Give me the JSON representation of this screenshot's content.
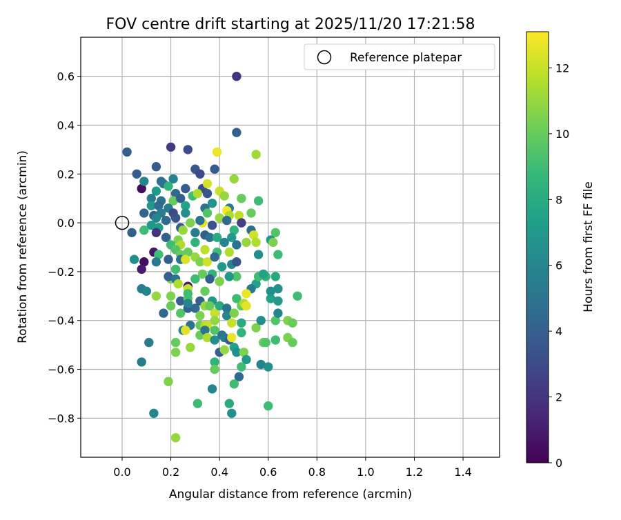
{
  "chart_data": {
    "type": "scatter",
    "title": "FOV centre drift starting at 2025/11/20 17:21:58",
    "xlabel": "Angular distance from reference (arcmin)",
    "ylabel": "Rotation from reference (arcmin)",
    "xlim": [
      -0.17,
      1.55
    ],
    "ylim": [
      -0.96,
      0.76
    ],
    "xticks": [
      0.0,
      0.2,
      0.4,
      0.6,
      0.8,
      1.0,
      1.2,
      1.4
    ],
    "xtick_labels": [
      "0.0",
      "0.2",
      "0.4",
      "0.6",
      "0.8",
      "1.0",
      "1.2",
      "1.4"
    ],
    "yticks": [
      0.6,
      0.4,
      0.2,
      0.0,
      -0.2,
      -0.4,
      -0.6,
      -0.8
    ],
    "ytick_labels": [
      "0.6",
      "0.4",
      "0.2",
      "0.0",
      "−0.2",
      "−0.4",
      "−0.6",
      "−0.8"
    ],
    "grid": true,
    "legend": {
      "placement": "top-right",
      "label": "Reference platepar",
      "marker": "open-circle"
    },
    "reference_point": {
      "x": 0.0,
      "y": 0.0
    },
    "colorbar": {
      "label": "Hours from first FF file",
      "range": [
        0,
        13.1
      ],
      "ticks": [
        0,
        2,
        4,
        6,
        8,
        10,
        12
      ],
      "tick_labels": [
        "0",
        "2",
        "4",
        "6",
        "8",
        "10",
        "12"
      ],
      "colormap": [
        "#440154",
        "#482878",
        "#3e4989",
        "#31688e",
        "#26828e",
        "#1f9e89",
        "#35b779",
        "#6ece58",
        "#b5de2b",
        "#fde725"
      ]
    },
    "points": [
      [
        0.47,
        0.6,
        2.0
      ],
      [
        0.47,
        0.37,
        4.0
      ],
      [
        0.02,
        0.29,
        4.0
      ],
      [
        0.2,
        0.31,
        2.3
      ],
      [
        0.27,
        0.3,
        3.0
      ],
      [
        0.39,
        0.29,
        12.8
      ],
      [
        0.55,
        0.28,
        11.2
      ],
      [
        0.3,
        0.22,
        3.5
      ],
      [
        0.38,
        0.22,
        3.8
      ],
      [
        0.06,
        0.2,
        3.8
      ],
      [
        0.14,
        0.23,
        3.8
      ],
      [
        0.32,
        0.2,
        3.0
      ],
      [
        0.21,
        0.18,
        5.8
      ],
      [
        0.46,
        0.18,
        11.0
      ],
      [
        0.16,
        0.17,
        4.7
      ],
      [
        0.08,
        0.14,
        0.5
      ],
      [
        0.17,
        0.16,
        5.0
      ],
      [
        0.26,
        0.14,
        3.8
      ],
      [
        0.33,
        0.14,
        3.2
      ],
      [
        0.35,
        0.16,
        12.3
      ],
      [
        0.4,
        0.13,
        12.0
      ],
      [
        0.09,
        0.17,
        6.0
      ],
      [
        0.14,
        0.13,
        7.0
      ],
      [
        0.19,
        0.15,
        8.5
      ],
      [
        0.22,
        0.12,
        4.5
      ],
      [
        0.29,
        0.11,
        9.0
      ],
      [
        0.31,
        0.12,
        11.5
      ],
      [
        0.35,
        0.12,
        3.5
      ],
      [
        0.42,
        0.11,
        11.0
      ],
      [
        0.49,
        0.1,
        10.0
      ],
      [
        0.12,
        0.1,
        5.5
      ],
      [
        0.16,
        0.09,
        5.0
      ],
      [
        0.21,
        0.09,
        10.0
      ],
      [
        0.24,
        0.1,
        4.0
      ],
      [
        0.37,
        0.08,
        6.8
      ],
      [
        0.56,
        0.09,
        9.0
      ],
      [
        0.12,
        0.07,
        7.0
      ],
      [
        0.15,
        0.07,
        4.5
      ],
      [
        0.19,
        0.06,
        5.5
      ],
      [
        0.26,
        0.07,
        7.5
      ],
      [
        0.34,
        0.06,
        5.0
      ],
      [
        0.44,
        0.06,
        5.5
      ],
      [
        0.09,
        0.04,
        4.2
      ],
      [
        0.13,
        0.03,
        3.8
      ],
      [
        0.16,
        0.04,
        5.5
      ],
      [
        0.21,
        0.04,
        3.0
      ],
      [
        0.26,
        0.04,
        6.5
      ],
      [
        0.35,
        0.04,
        9.5
      ],
      [
        0.43,
        0.05,
        12.9
      ],
      [
        0.48,
        0.03,
        11.8
      ],
      [
        0.53,
        0.04,
        10.0
      ],
      [
        0.14,
        0.02,
        6.0
      ],
      [
        0.18,
        0.01,
        4.5
      ],
      [
        0.22,
        0.02,
        3.5
      ],
      [
        0.28,
        0.0,
        10.5
      ],
      [
        0.33,
        0.0,
        12.6
      ],
      [
        0.4,
        0.02,
        11.0
      ],
      [
        0.44,
        0.03,
        11.5
      ],
      [
        0.49,
        0.0,
        2.5
      ],
      [
        0.12,
        -0.01,
        7.0
      ],
      [
        0.15,
        -0.02,
        7.2
      ],
      [
        0.24,
        -0.02,
        4.0
      ],
      [
        0.32,
        0.01,
        5.0
      ],
      [
        0.37,
        -0.01,
        3.3
      ],
      [
        0.43,
        0.01,
        4.5
      ],
      [
        0.09,
        -0.03,
        9.0
      ],
      [
        0.14,
        -0.04,
        2.0
      ],
      [
        0.25,
        -0.03,
        11.0
      ],
      [
        0.3,
        -0.04,
        5.5
      ],
      [
        0.34,
        -0.05,
        3.8
      ],
      [
        0.46,
        -0.03,
        8.5
      ],
      [
        0.53,
        -0.03,
        4.6
      ],
      [
        0.04,
        -0.04,
        4.0
      ],
      [
        0.18,
        -0.06,
        4.0
      ],
      [
        0.23,
        -0.07,
        10.5
      ],
      [
        0.36,
        -0.06,
        5.0
      ],
      [
        0.39,
        -0.06,
        8.0
      ],
      [
        0.45,
        -0.06,
        7.0
      ],
      [
        0.54,
        -0.05,
        12.2
      ],
      [
        0.63,
        -0.04,
        9.5
      ],
      [
        0.2,
        -0.09,
        9.0
      ],
      [
        0.24,
        -0.09,
        11.5
      ],
      [
        0.3,
        -0.08,
        8.5
      ],
      [
        0.42,
        -0.08,
        6.0
      ],
      [
        0.47,
        -0.09,
        5.0
      ],
      [
        0.51,
        -0.08,
        11.0
      ],
      [
        0.55,
        -0.08,
        11.5
      ],
      [
        0.61,
        -0.07,
        7.0
      ],
      [
        0.62,
        -0.08,
        10.5
      ],
      [
        0.22,
        -0.11,
        9.5
      ],
      [
        0.13,
        -0.12,
        0.8
      ],
      [
        0.15,
        -0.13,
        9.0
      ],
      [
        0.24,
        -0.13,
        10.0
      ],
      [
        0.27,
        -0.12,
        10.0
      ],
      [
        0.34,
        -0.11,
        11.8
      ],
      [
        0.39,
        -0.12,
        9.0
      ],
      [
        0.44,
        -0.12,
        11.5
      ],
      [
        0.56,
        -0.13,
        6.5
      ],
      [
        0.64,
        -0.13,
        9.0
      ],
      [
        0.05,
        -0.15,
        6.5
      ],
      [
        0.14,
        -0.16,
        5.5
      ],
      [
        0.19,
        -0.15,
        4.0
      ],
      [
        0.24,
        -0.15,
        5.0
      ],
      [
        0.26,
        -0.15,
        12.4
      ],
      [
        0.3,
        -0.14,
        11.0
      ],
      [
        0.32,
        -0.16,
        10.5
      ],
      [
        0.35,
        -0.16,
        12.2
      ],
      [
        0.38,
        -0.14,
        4.5
      ],
      [
        0.41,
        -0.18,
        7.0
      ],
      [
        0.45,
        -0.17,
        6.0
      ],
      [
        0.47,
        -0.16,
        3.5
      ],
      [
        0.09,
        -0.16,
        0.5
      ],
      [
        0.08,
        -0.19,
        1.0
      ],
      [
        0.22,
        -0.19,
        9.0
      ],
      [
        0.33,
        -0.21,
        10.0
      ],
      [
        0.37,
        -0.21,
        8.5
      ],
      [
        0.47,
        -0.22,
        9.5
      ],
      [
        0.55,
        -0.25,
        7.5
      ],
      [
        0.56,
        -0.22,
        9.0
      ],
      [
        0.59,
        -0.22,
        8.5
      ],
      [
        0.58,
        -0.21,
        7.5
      ],
      [
        0.63,
        -0.22,
        8.0
      ],
      [
        0.2,
        -0.23,
        10.5
      ],
      [
        0.19,
        -0.22,
        4.0
      ],
      [
        0.22,
        -0.23,
        5.0
      ],
      [
        0.23,
        -0.25,
        11.5
      ],
      [
        0.27,
        -0.26,
        1.0
      ],
      [
        0.27,
        -0.27,
        12.0
      ],
      [
        0.3,
        -0.23,
        9.0
      ],
      [
        0.36,
        -0.23,
        4.0
      ],
      [
        0.4,
        -0.24,
        10.5
      ],
      [
        0.44,
        -0.22,
        7.0
      ],
      [
        0.53,
        -0.27,
        5.5
      ],
      [
        0.64,
        -0.27,
        6.5
      ],
      [
        0.08,
        -0.27,
        5.5
      ],
      [
        0.1,
        -0.28,
        6.0
      ],
      [
        0.14,
        -0.3,
        11.0
      ],
      [
        0.2,
        -0.3,
        10.5
      ],
      [
        0.24,
        -0.32,
        4.0
      ],
      [
        0.27,
        -0.31,
        9.5
      ],
      [
        0.27,
        -0.29,
        9.0
      ],
      [
        0.32,
        -0.32,
        4.0
      ],
      [
        0.34,
        -0.28,
        10.0
      ],
      [
        0.37,
        -0.32,
        7.0
      ],
      [
        0.47,
        -0.31,
        9.0
      ],
      [
        0.51,
        -0.29,
        12.7
      ],
      [
        0.61,
        -0.31,
        7.5
      ],
      [
        0.61,
        -0.28,
        6.5
      ],
      [
        0.64,
        -0.32,
        7.0
      ],
      [
        0.72,
        -0.3,
        9.0
      ],
      [
        0.17,
        -0.37,
        4.3
      ],
      [
        0.2,
        -0.34,
        10.0
      ],
      [
        0.24,
        -0.37,
        9.5
      ],
      [
        0.27,
        -0.35,
        4.0
      ],
      [
        0.27,
        -0.33,
        6.0
      ],
      [
        0.3,
        -0.35,
        4.5
      ],
      [
        0.34,
        -0.34,
        11.0
      ],
      [
        0.36,
        -0.34,
        10.0
      ],
      [
        0.38,
        -0.37,
        12.0
      ],
      [
        0.4,
        -0.34,
        8.0
      ],
      [
        0.43,
        -0.35,
        5.0
      ],
      [
        0.43,
        -0.38,
        6.0
      ],
      [
        0.46,
        -0.37,
        10.5
      ],
      [
        0.49,
        -0.34,
        10.0
      ],
      [
        0.5,
        -0.33,
        11.5
      ],
      [
        0.51,
        -0.34,
        12.6
      ],
      [
        0.28,
        -0.42,
        5.0
      ],
      [
        0.32,
        -0.38,
        10.5
      ],
      [
        0.32,
        -0.42,
        10.0
      ],
      [
        0.34,
        -0.42,
        11.5
      ],
      [
        0.35,
        -0.42,
        12.0
      ],
      [
        0.38,
        -0.4,
        11.0
      ],
      [
        0.45,
        -0.41,
        12.0
      ],
      [
        0.49,
        -0.41,
        8.0
      ],
      [
        0.55,
        -0.43,
        10.5
      ],
      [
        0.57,
        -0.4,
        6.5
      ],
      [
        0.63,
        -0.4,
        9.5
      ],
      [
        0.64,
        -0.37,
        6.0
      ],
      [
        0.68,
        -0.4,
        10.5
      ],
      [
        0.7,
        -0.41,
        10.0
      ],
      [
        0.25,
        -0.44,
        6.0
      ],
      [
        0.26,
        -0.44,
        12.5
      ],
      [
        0.32,
        -0.46,
        10.0
      ],
      [
        0.34,
        -0.44,
        5.0
      ],
      [
        0.35,
        -0.47,
        11.5
      ],
      [
        0.38,
        -0.44,
        9.5
      ],
      [
        0.38,
        -0.48,
        6.5
      ],
      [
        0.41,
        -0.46,
        5.0
      ],
      [
        0.42,
        -0.47,
        5.5
      ],
      [
        0.44,
        -0.48,
        4.0
      ],
      [
        0.45,
        -0.47,
        12.7
      ],
      [
        0.49,
        -0.45,
        8.5
      ],
      [
        0.58,
        -0.49,
        10.0
      ],
      [
        0.59,
        -0.49,
        9.5
      ],
      [
        0.63,
        -0.48,
        9.0
      ],
      [
        0.68,
        -0.47,
        10.5
      ],
      [
        0.7,
        -0.49,
        10.0
      ],
      [
        0.11,
        -0.49,
        5.5
      ],
      [
        0.22,
        -0.49,
        10.0
      ],
      [
        0.28,
        -0.51,
        11.0
      ],
      [
        0.4,
        -0.53,
        4.0
      ],
      [
        0.42,
        -0.52,
        11.0
      ],
      [
        0.46,
        -0.51,
        7.5
      ],
      [
        0.47,
        -0.53,
        6.5
      ],
      [
        0.5,
        -0.53,
        10.5
      ],
      [
        0.51,
        -0.56,
        7.0
      ],
      [
        0.22,
        -0.53,
        10.5
      ],
      [
        0.08,
        -0.57,
        5.5
      ],
      [
        0.38,
        -0.57,
        8.5
      ],
      [
        0.49,
        -0.59,
        9.0
      ],
      [
        0.57,
        -0.58,
        6.0
      ],
      [
        0.6,
        -0.59,
        6.5
      ],
      [
        0.38,
        -0.6,
        10.0
      ],
      [
        0.48,
        -0.63,
        4.5
      ],
      [
        0.19,
        -0.65,
        10.5
      ],
      [
        0.46,
        -0.66,
        9.0
      ],
      [
        0.37,
        -0.68,
        6.0
      ],
      [
        0.31,
        -0.74,
        9.0
      ],
      [
        0.44,
        -0.74,
        8.0
      ],
      [
        0.6,
        -0.75,
        9.0
      ],
      [
        0.13,
        -0.78,
        6.0
      ],
      [
        0.45,
        -0.78,
        6.5
      ],
      [
        0.22,
        -0.88,
        11.0
      ]
    ]
  }
}
